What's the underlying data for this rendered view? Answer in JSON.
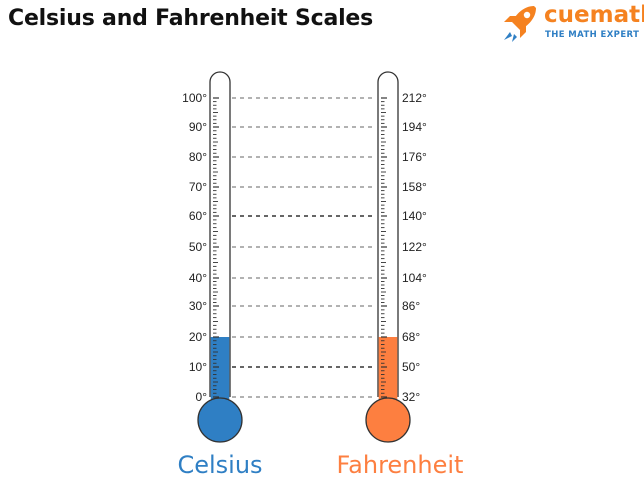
{
  "title": "Celsius and Fahrenheit Scales",
  "logo": {
    "word_part1": "cue",
    "word_part2": "math",
    "tagline": "THE MATH EXPERT",
    "icon": "rocket-icon",
    "color": "#f58220"
  },
  "colors": {
    "celsius": "#2f7fc4",
    "fahrenheit": "#fd7f40",
    "outline": "#333333"
  },
  "celsius": {
    "name": "Celsius",
    "labels": [
      "0°",
      "10°",
      "20°",
      "30°",
      "40°",
      "50°",
      "60°",
      "70°",
      "80°",
      "90°",
      "100°"
    ],
    "fill_level": 20
  },
  "fahrenheit": {
    "name": "Fahrenheit",
    "labels": [
      "32°",
      "50°",
      "68°",
      "86°",
      "104°",
      "122°",
      "140°",
      "158°",
      "176°",
      "194°",
      "212°"
    ],
    "fill_level": 68
  }
}
